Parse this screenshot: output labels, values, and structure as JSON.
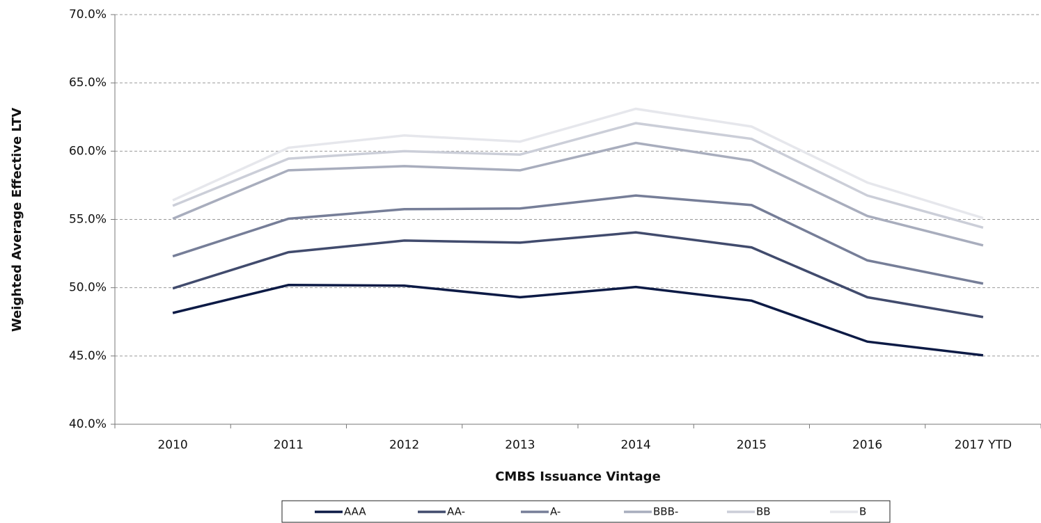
{
  "chart_data": {
    "type": "line",
    "x_label": "CMBS Issuance Vintage",
    "y_label": "Weighted Average Effective LTV",
    "categories": [
      "2010",
      "2011",
      "2012",
      "2013",
      "2014",
      "2015",
      "2016",
      "2017 YTD"
    ],
    "series": [
      {
        "name": "AAA",
        "color": "#0c1a45",
        "values": [
          48.15,
          50.2,
          50.15,
          49.3,
          50.05,
          49.05,
          46.05,
          45.05
        ]
      },
      {
        "name": "AA-",
        "color": "#414b6d",
        "values": [
          49.95,
          52.6,
          53.45,
          53.3,
          54.05,
          52.95,
          49.3,
          47.85
        ]
      },
      {
        "name": "A-",
        "color": "#767e98",
        "values": [
          52.3,
          55.05,
          55.75,
          55.8,
          56.75,
          56.05,
          52.0,
          50.3
        ]
      },
      {
        "name": "BBB-",
        "color": "#a8adbd",
        "values": [
          55.05,
          58.6,
          58.9,
          58.6,
          60.6,
          59.3,
          55.25,
          53.1
        ]
      },
      {
        "name": "BB",
        "color": "#cbced8",
        "values": [
          56.0,
          59.45,
          60.0,
          59.75,
          62.05,
          60.9,
          56.75,
          54.4
        ]
      },
      {
        "name": "B",
        "color": "#e6e7ec",
        "values": [
          56.4,
          60.25,
          61.15,
          60.7,
          63.1,
          61.8,
          57.7,
          55.1
        ]
      }
    ],
    "ylim": [
      40,
      70
    ],
    "yticks": [
      {
        "value": 40,
        "label": "40.0%"
      },
      {
        "value": 45,
        "label": "45.0%"
      },
      {
        "value": 50,
        "label": "50.0%"
      },
      {
        "value": 55,
        "label": "55.0%"
      },
      {
        "value": 60,
        "label": "60.0%"
      },
      {
        "value": 65,
        "label": "65.0%"
      },
      {
        "value": 70,
        "label": "70.0%"
      }
    ],
    "grid": true,
    "legend": "bottom"
  }
}
